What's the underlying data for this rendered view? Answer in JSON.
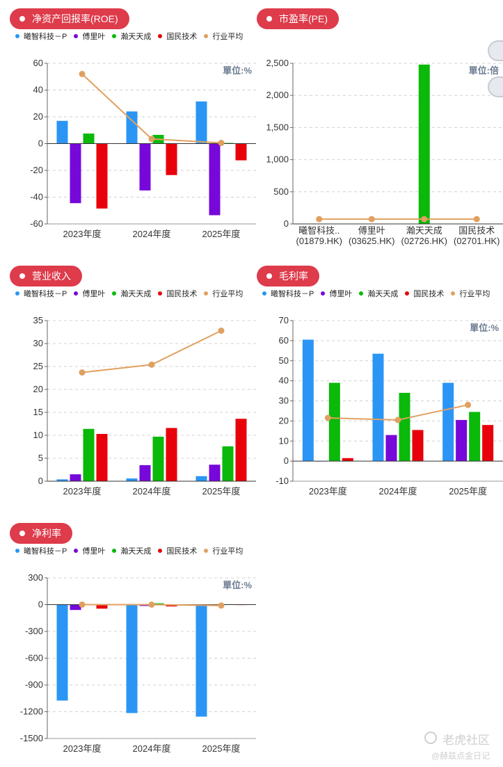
{
  "legend": [
    {
      "name": "曦智科技－P",
      "color": "#2b95f5"
    },
    {
      "name": "傅里叶",
      "color": "#7608d9"
    },
    {
      "name": "瀚天天成",
      "color": "#0ab90a"
    },
    {
      "name": "国民技术",
      "color": "#e8000a"
    },
    {
      "name": "行业平均",
      "color": "#e0a060"
    }
  ],
  "watermark": {
    "logo_text": "老虎社区",
    "author": "@赫兹点金日记"
  },
  "chart_data": [
    {
      "id": "roe",
      "type": "bar",
      "title": "净资产回报率(ROE)",
      "unit": "單位:%",
      "categories": [
        "2023年度",
        "2024年度",
        "2025年度"
      ],
      "series": [
        {
          "name": "曦智科技－P",
          "values": [
            17,
            24,
            31.5
          ]
        },
        {
          "name": "傅里叶",
          "values": [
            -44.5,
            -35,
            -53.5
          ]
        },
        {
          "name": "瀚天天成",
          "values": [
            7.5,
            6.5,
            0.5
          ]
        },
        {
          "name": "国民技术",
          "values": [
            -48.5,
            -23.5,
            -12.5
          ]
        }
      ],
      "line": {
        "name": "行业平均",
        "values": [
          52,
          3.5,
          0.5
        ]
      },
      "ylim": [
        -60,
        60
      ],
      "yticks": [
        -60,
        -40,
        -20,
        0,
        20,
        40,
        60
      ],
      "grid": true,
      "legend_position": "top-left"
    },
    {
      "id": "pe",
      "type": "bar",
      "title": "市盈率(PE)",
      "unit": "單位:倍",
      "categories": [
        "曦智科技..\n(01879.HK)",
        "傅里叶\n(03625.HK)",
        "瀚天天成\n(02726.HK)",
        "国民技术\n(02701.HK)"
      ],
      "values": [
        0,
        0,
        2480,
        0
      ],
      "bar_color_index": 2,
      "line": {
        "name": "行业平均",
        "values": [
          75,
          75,
          75,
          75
        ]
      },
      "ylim": [
        0,
        2500
      ],
      "yticks": [
        0,
        500,
        1000,
        1500,
        2000,
        2500
      ],
      "ytick_labels": [
        "0",
        "500",
        "1,000",
        "1,500",
        "2,000",
        "2,500"
      ],
      "grid": true
    },
    {
      "id": "revenue",
      "type": "bar",
      "title": "营业收入",
      "unit": "",
      "categories": [
        "2023年度",
        "2024年度",
        "2025年度"
      ],
      "series": [
        {
          "name": "曦智科技－P",
          "values": [
            0.4,
            0.6,
            1.1
          ]
        },
        {
          "name": "傅里叶",
          "values": [
            1.5,
            3.5,
            3.6
          ]
        },
        {
          "name": "瀚天天成",
          "values": [
            11.4,
            9.7,
            7.6
          ]
        },
        {
          "name": "国民技术",
          "values": [
            10.3,
            11.6,
            13.6
          ]
        }
      ],
      "line": {
        "name": "行业平均",
        "values": [
          23.7,
          25.4,
          32.8
        ]
      },
      "ylim": [
        0,
        35
      ],
      "yticks": [
        0,
        5,
        10,
        15,
        20,
        25,
        30,
        35
      ],
      "grid": true,
      "legend_position": "top-left"
    },
    {
      "id": "gross-margin",
      "type": "bar",
      "title": "毛利率",
      "unit": "單位:%",
      "categories": [
        "2023年度",
        "2024年度",
        "2025年度"
      ],
      "series": [
        {
          "name": "曦智科技－P",
          "values": [
            60.5,
            53.5,
            39
          ]
        },
        {
          "name": "傅里叶",
          "values": [
            0,
            13,
            20.5
          ]
        },
        {
          "name": "瀚天天成",
          "values": [
            39,
            34,
            24.5
          ]
        },
        {
          "name": "国民技术",
          "values": [
            1.5,
            15.5,
            18
          ]
        }
      ],
      "line": {
        "name": "行业平均",
        "values": [
          21.5,
          20.5,
          28
        ]
      },
      "ylim": [
        -10,
        70
      ],
      "yticks": [
        -10,
        0,
        10,
        20,
        30,
        40,
        50,
        60,
        70
      ],
      "grid": true,
      "legend_position": "top-left"
    },
    {
      "id": "net-margin",
      "type": "bar",
      "title": "净利率",
      "unit": "單位:%",
      "categories": [
        "2023年度",
        "2024年度",
        "2025年度"
      ],
      "series": [
        {
          "name": "曦智科技－P",
          "values": [
            -1075,
            -1215,
            -1255
          ]
        },
        {
          "name": "傅里叶",
          "values": [
            -60,
            -15,
            -5
          ]
        },
        {
          "name": "瀚天天成",
          "values": [
            5,
            15,
            5
          ]
        },
        {
          "name": "国民技术",
          "values": [
            -45,
            -20,
            -5
          ]
        }
      ],
      "line": {
        "name": "行业平均",
        "values": [
          0,
          0,
          -10
        ]
      },
      "ylim": [
        -1500,
        300
      ],
      "yticks": [
        -1500,
        -1200,
        -900,
        -600,
        -300,
        0,
        300
      ],
      "grid": true,
      "legend_position": "top-left"
    }
  ]
}
